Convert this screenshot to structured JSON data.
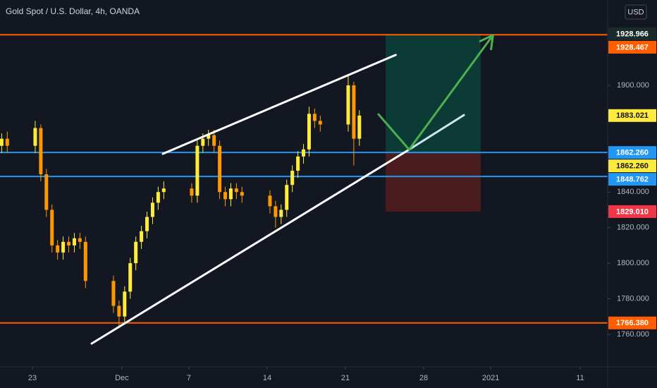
{
  "chart_data": {
    "type": "candlestick",
    "title": "Gold Spot / U.S. Dollar, 4h, OANDA",
    "currency": "USD",
    "x": [
      -2.75,
      -2.25,
      0.25,
      0.75,
      1.25,
      1.75,
      2.25,
      2.75,
      3.25,
      3.75,
      4.25,
      4.75,
      7.25,
      7.75,
      8.25,
      8.75,
      9.25,
      9.75,
      10.25,
      10.75,
      11.25,
      11.75,
      14.25,
      14.75,
      15.25,
      15.75,
      16.25,
      16.75,
      17.25,
      17.75,
      18.25,
      18.75,
      21.25,
      21.75,
      22.25,
      22.75,
      23.25,
      23.75,
      24.25,
      24.75,
      25.25,
      25.75,
      28.25,
      28.75,
      29.25
    ],
    "open": [
      1866,
      1870,
      1866,
      1876,
      1850,
      1830,
      1810,
      1806,
      1812,
      1810,
      1814,
      1812,
      1790,
      1776,
      1770,
      1784,
      1800,
      1812,
      1818,
      1826,
      1834,
      1840,
      1842,
      1838,
      1866,
      1870,
      1872,
      1866,
      1840,
      1836,
      1842,
      1840,
      1838,
      1832,
      1826,
      1830,
      1844,
      1852,
      1860,
      1864,
      1884,
      1880,
      1878,
      1900,
      1870
    ],
    "high": [
      1873,
      1874,
      1880,
      1878,
      1853,
      1833,
      1813,
      1815,
      1815,
      1817,
      1817,
      1815,
      1793,
      1779,
      1787,
      1803,
      1815,
      1821,
      1829,
      1837,
      1843,
      1846,
      1845,
      1869,
      1873,
      1875,
      1875,
      1869,
      1843,
      1845,
      1845,
      1843,
      1841,
      1835,
      1833,
      1847,
      1855,
      1863,
      1867,
      1888,
      1887,
      1883,
      1906,
      1902,
      1886
    ],
    "low": [
      1862,
      1862,
      1862,
      1846,
      1826,
      1806,
      1802,
      1802,
      1806,
      1806,
      1808,
      1786,
      1772,
      1765,
      1766,
      1780,
      1796,
      1808,
      1814,
      1822,
      1830,
      1836,
      1834,
      1834,
      1862,
      1866,
      1862,
      1836,
      1832,
      1832,
      1836,
      1834,
      1828,
      1820,
      1822,
      1826,
      1840,
      1848,
      1856,
      1860,
      1876,
      1874,
      1874,
      1855,
      1866
    ],
    "close": [
      1870,
      1866,
      1876,
      1850,
      1830,
      1810,
      1806,
      1812,
      1810,
      1814,
      1812,
      1790,
      1776,
      1770,
      1784,
      1800,
      1812,
      1818,
      1826,
      1834,
      1840,
      1842,
      1838,
      1866,
      1870,
      1872,
      1866,
      1840,
      1836,
      1842,
      1840,
      1838,
      1832,
      1826,
      1830,
      1844,
      1852,
      1860,
      1864,
      1884,
      1880,
      1878,
      1900,
      1870,
      1883
    ],
    "up_color": "#ffeb3b",
    "down_color": "#ff9800",
    "xlim": [
      -2.9,
      51.46
    ],
    "ylim": [
      1741.7,
      1948.0
    ],
    "xticks": [
      {
        "value": 0,
        "label": "23"
      },
      {
        "value": 8,
        "label": "Dec"
      },
      {
        "value": 14,
        "label": "7"
      },
      {
        "value": 21,
        "label": "14"
      },
      {
        "value": 28,
        "label": "21"
      },
      {
        "value": 35,
        "label": "28"
      },
      {
        "value": 41,
        "label": "2021"
      },
      {
        "value": 49,
        "label": "11"
      }
    ],
    "yticks": [
      {
        "value": 1760,
        "label": "1760.000"
      },
      {
        "value": 1780,
        "label": "1780.000"
      },
      {
        "value": 1800,
        "label": "1800.000"
      },
      {
        "value": 1820,
        "label": "1820.000"
      },
      {
        "value": 1840,
        "label": "1840.000"
      },
      {
        "value": 1900,
        "label": "1900.000"
      }
    ],
    "levels": [
      {
        "value": 1928.467,
        "label": "1928.467",
        "color": "#ff5d00"
      },
      {
        "value": 1862.26,
        "label": "1862.260",
        "color": "#2196f3"
      },
      {
        "value": 1848.762,
        "label": "1848.762",
        "color": "#2196f3"
      },
      {
        "value": 1766.38,
        "label": "1766.380",
        "color": "#ff5d00"
      }
    ],
    "last_price": {
      "value": 1883.021,
      "label": "1883.021",
      "color": "#ffeb3b"
    },
    "position": {
      "x": [
        31.6,
        40.1
      ],
      "target": {
        "value": 1928.966,
        "label": "1928.966",
        "color": "#1b2a2a"
      },
      "entry": {
        "value": 1862.26,
        "label": "1862.260",
        "color": "#ffeb3b"
      },
      "stop": {
        "value": 1829.01,
        "label": "1829.010",
        "color": "#f23645"
      },
      "profit_color": "#0c3a34",
      "loss_color": "#4a1c1e"
    },
    "lines": [
      {
        "x": [
          11.67,
          32.5
        ],
        "y": [
          1861.5,
          1917.1
        ],
        "color": "#ffffff"
      },
      {
        "x": [
          5.3,
          33.7
        ],
        "y": [
          1754.8,
          1863.9
        ],
        "color": "#ffffff"
      },
      {
        "x": [
          33.7,
          38.6
        ],
        "y": [
          1863.9,
          1883.3
        ],
        "color": "#cfe6f2"
      },
      {
        "x": [
          30.96,
          33.7,
          41.2
        ],
        "y": [
          1883.7,
          1863.9,
          1928.2
        ],
        "color": "#4caf50",
        "arrow": true
      }
    ]
  }
}
